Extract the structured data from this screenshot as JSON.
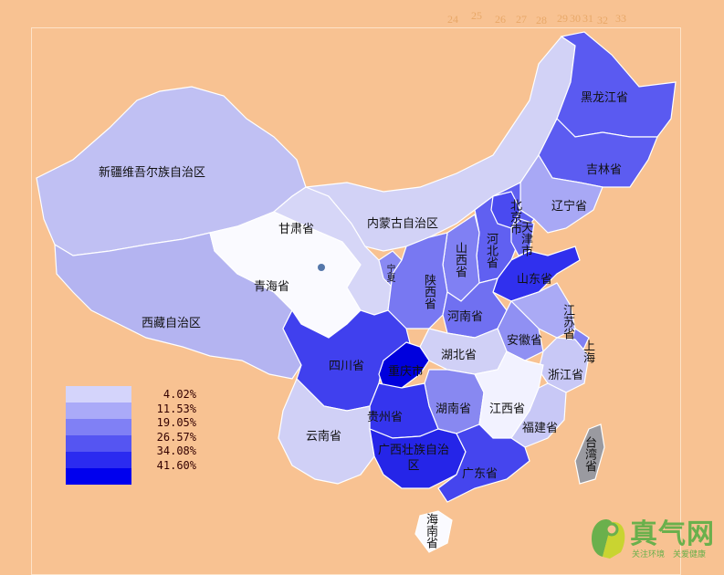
{
  "scale_numbers": [
    "24",
    "25",
    "26",
    "27",
    "28",
    "29",
    "30",
    "31",
    "32",
    "33"
  ],
  "legend": {
    "labels": [
      "4.02%",
      "11.53%",
      "19.05%",
      "26.57%",
      "34.08%",
      "41.60%"
    ],
    "colors": [
      "#d4d4fb",
      "#aaaaf8",
      "#8080f5",
      "#5555f2",
      "#2b2bf0",
      "#0000ee"
    ]
  },
  "provinces": [
    {
      "name": "新疆维吾尔族自治区",
      "color": "#c0c0f3"
    },
    {
      "name": "西藏自治区",
      "color": "#b4b4f1"
    },
    {
      "name": "青海省",
      "color": "#fafaff"
    },
    {
      "name": "甘肃省",
      "color": "#d6d6f7"
    },
    {
      "name": "内蒙古自治区",
      "color": "#d2d2f6"
    },
    {
      "name": "黑龙江省",
      "color": "#5a5af1"
    },
    {
      "name": "吉林省",
      "color": "#5c5cf1"
    },
    {
      "name": "辽宁省",
      "color": "#a8a8f5"
    },
    {
      "name": "北京市",
      "color": "#6060f1"
    },
    {
      "name": "天津市",
      "color": "#4a4af0"
    },
    {
      "name": "河北省",
      "color": "#6868f1"
    },
    {
      "name": "山西省",
      "color": "#8080f3"
    },
    {
      "name": "山东省",
      "color": "#3030ee"
    },
    {
      "name": "宁夏",
      "color": "#8a8af3"
    },
    {
      "name": "陕西省",
      "color": "#7878f2"
    },
    {
      "name": "河南省",
      "color": "#7070f1"
    },
    {
      "name": "江苏省",
      "color": "#aaaaf5"
    },
    {
      "name": "安徽省",
      "color": "#9090f3"
    },
    {
      "name": "上海",
      "color": "#8080f2"
    },
    {
      "name": "浙江省",
      "color": "#c8c8f6"
    },
    {
      "name": "湖北省",
      "color": "#d0d0f6"
    },
    {
      "name": "四川省",
      "color": "#4040ee"
    },
    {
      "name": "重庆市",
      "color": "#0000dd"
    },
    {
      "name": "湖南省",
      "color": "#8888f1"
    },
    {
      "name": "贵州省",
      "color": "#3535ee"
    },
    {
      "name": "江西省",
      "color": "#f2f2ff"
    },
    {
      "name": "福建省",
      "color": "#c8c8f6"
    },
    {
      "name": "云南省",
      "color": "#d0d0f6"
    },
    {
      "name": "广西壮族自治区",
      "color": "#2525e8"
    },
    {
      "name": "广东省",
      "color": "#4545ee"
    },
    {
      "name": "海南省",
      "color": "#fafaff"
    },
    {
      "name": "台湾省",
      "color": "#9a9aa0"
    }
  ],
  "logo": {
    "title": "真气网",
    "subtitle": "关注环境　关爱健康"
  }
}
